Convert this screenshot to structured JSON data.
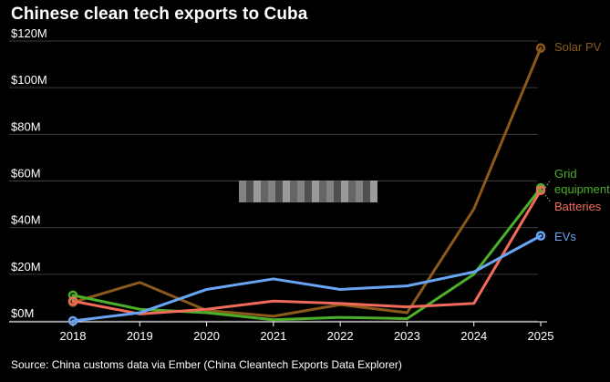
{
  "title": "Chinese clean tech exports to Cuba",
  "source": "Source: China customs data via Ember (China Cleantech Exports Data Explorer)",
  "chart_data": {
    "type": "line",
    "title": "Chinese clean tech exports to Cuba",
    "xlabel": "",
    "ylabel": "",
    "x": [
      "2018",
      "2019",
      "2020",
      "2021",
      "2022",
      "2023",
      "2024",
      "2025"
    ],
    "ylim": [
      0,
      120
    ],
    "yticks": [
      0,
      20,
      40,
      60,
      80,
      100,
      120
    ],
    "ytick_labels": [
      "$0M",
      "$20M",
      "$40M",
      "$60M",
      "$80M",
      "$100M",
      "$120M"
    ],
    "grid": "horizontal",
    "series": [
      {
        "name": "Solar PV",
        "color": "#8B5A1B",
        "values": [
          8,
          16.5,
          4.5,
          2,
          7,
          3.5,
          48,
          117
        ]
      },
      {
        "name": "Grid equipment",
        "color": "#4CAF2A",
        "values": [
          11,
          5,
          3.5,
          0.5,
          1.5,
          1,
          20,
          57
        ]
      },
      {
        "name": "Batteries",
        "color": "#F26B5B",
        "values": [
          8.5,
          3,
          5,
          8.5,
          7.5,
          6,
          7.5,
          56
        ]
      },
      {
        "name": "EVs",
        "color": "#6AA5F5",
        "values": [
          0,
          3.5,
          13.5,
          18,
          13.5,
          15,
          21,
          36.5
        ]
      }
    ],
    "labels": [
      {
        "series": "Solar PV",
        "lines": [
          "Solar PV"
        ]
      },
      {
        "series": "Grid equipment",
        "lines": [
          "Grid",
          "equipment"
        ]
      },
      {
        "series": "Batteries",
        "lines": [
          "Batteries"
        ]
      },
      {
        "series": "EVs",
        "lines": [
          "EVs"
        ]
      }
    ]
  }
}
